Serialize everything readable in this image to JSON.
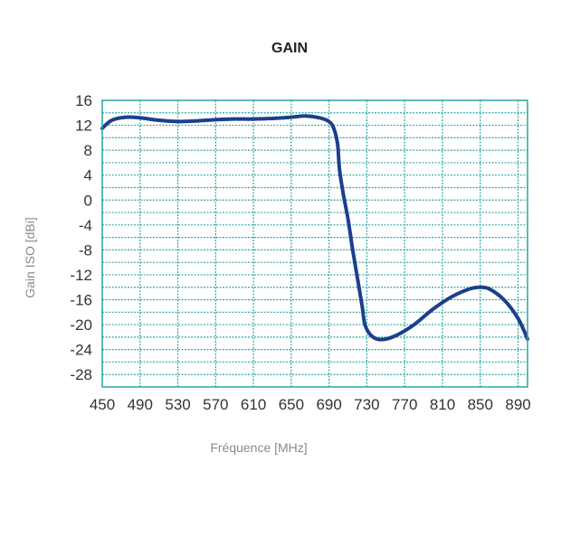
{
  "chart_data": {
    "type": "line",
    "title": "GAIN",
    "xlabel": "Fréquence [MHz]",
    "ylabel": "Gain ISO [dBi]",
    "xlim": [
      450,
      900
    ],
    "ylim": [
      -30,
      16
    ],
    "xticks": [
      450,
      490,
      530,
      570,
      610,
      650,
      690,
      730,
      770,
      810,
      850,
      890
    ],
    "yticks": [
      16,
      12,
      8,
      4,
      0,
      -4,
      -8,
      -12,
      -16,
      -20,
      -24,
      -28
    ],
    "grid": true,
    "grid_minor_y_step": 2,
    "colors": {
      "line": "#1c3f8c",
      "grid": "#2aa6a6",
      "frame": "#2aa6a6",
      "axis_label": "#8a8a8a"
    },
    "series": [
      {
        "x": [
          450,
          460,
          475,
          490,
          510,
          530,
          550,
          570,
          590,
          610,
          630,
          650,
          665,
          680,
          690,
          695,
          699,
          701,
          705,
          710,
          715,
          720,
          725,
          728,
          735,
          745,
          760,
          780,
          800,
          820,
          840,
          850,
          860,
          875,
          890,
          900
        ],
        "y": [
          11.5,
          12.8,
          13.3,
          13.2,
          12.8,
          12.6,
          12.7,
          12.9,
          13.0,
          13.0,
          13.1,
          13.3,
          13.5,
          13.2,
          12.6,
          11.5,
          9,
          5,
          1,
          -3,
          -8,
          -12.5,
          -17,
          -20,
          -21.8,
          -22.4,
          -21.8,
          -20,
          -17.5,
          -15.5,
          -14.2,
          -14,
          -14.3,
          -16,
          -19,
          -22.3
        ]
      }
    ]
  }
}
